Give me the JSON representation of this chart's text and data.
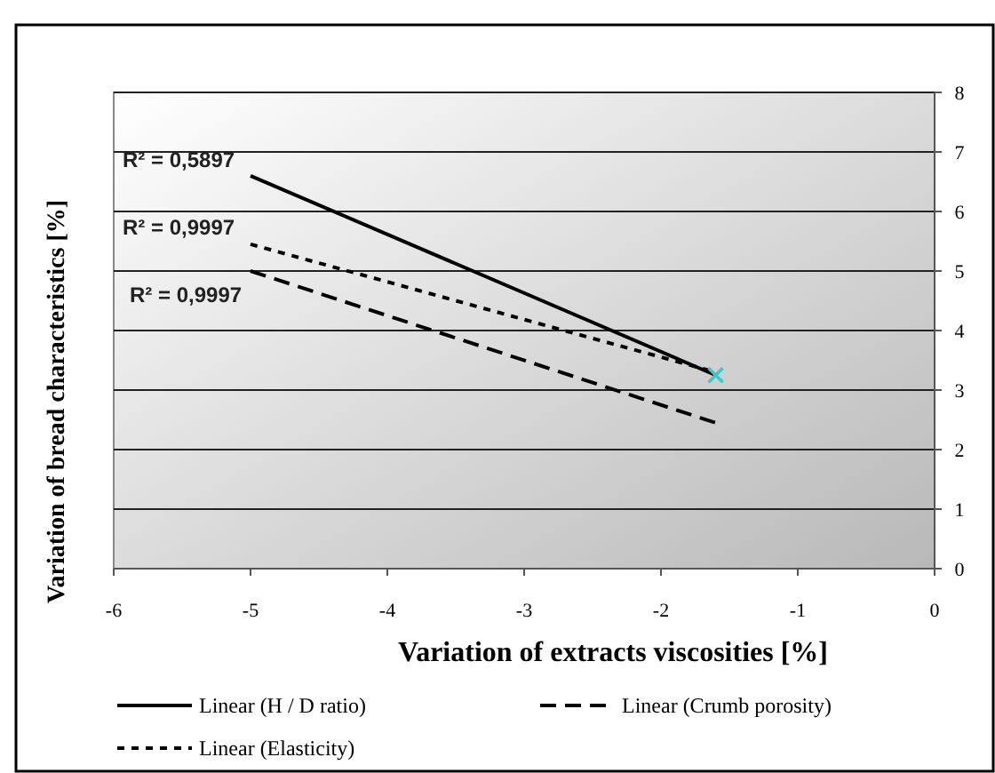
{
  "chart_data": {
    "type": "line",
    "xlabel": "Variation of extracts viscosities [%]",
    "ylabel": "Variation of bread characteristics [%]",
    "xlim": [
      -6,
      0
    ],
    "xticks": [
      -6,
      -5,
      -4,
      -3,
      -2,
      -1,
      0
    ],
    "ylim": [
      0,
      8
    ],
    "yticks": [
      0,
      1,
      2,
      3,
      4,
      5,
      6,
      7,
      8
    ],
    "grid": "y",
    "x": [
      -5,
      -1.6
    ],
    "legend": "bottom",
    "marker": "none",
    "series": [
      {
        "name": "Linear (H / D ratio)",
        "color": "#000000",
        "line_style": "solid",
        "values": [
          6.6,
          3.25
        ]
      },
      {
        "name": "Linear (Crumb porosity)",
        "color": "#000000",
        "line_style": "dashed",
        "values": [
          5.0,
          2.45
        ]
      },
      {
        "name": "Linear (Elasticity)",
        "color": "#000000",
        "line_style": "dotted",
        "values": [
          5.45,
          3.3
        ]
      },
      {
        "type": "scatter",
        "color": "#33cccc",
        "marker": "cross",
        "x": [
          -1.6
        ],
        "values": [
          3.25
        ]
      }
    ],
    "annotations": [
      "R² = 0,5897",
      "R² = 0,9997",
      "R² = 0,9997"
    ]
  }
}
